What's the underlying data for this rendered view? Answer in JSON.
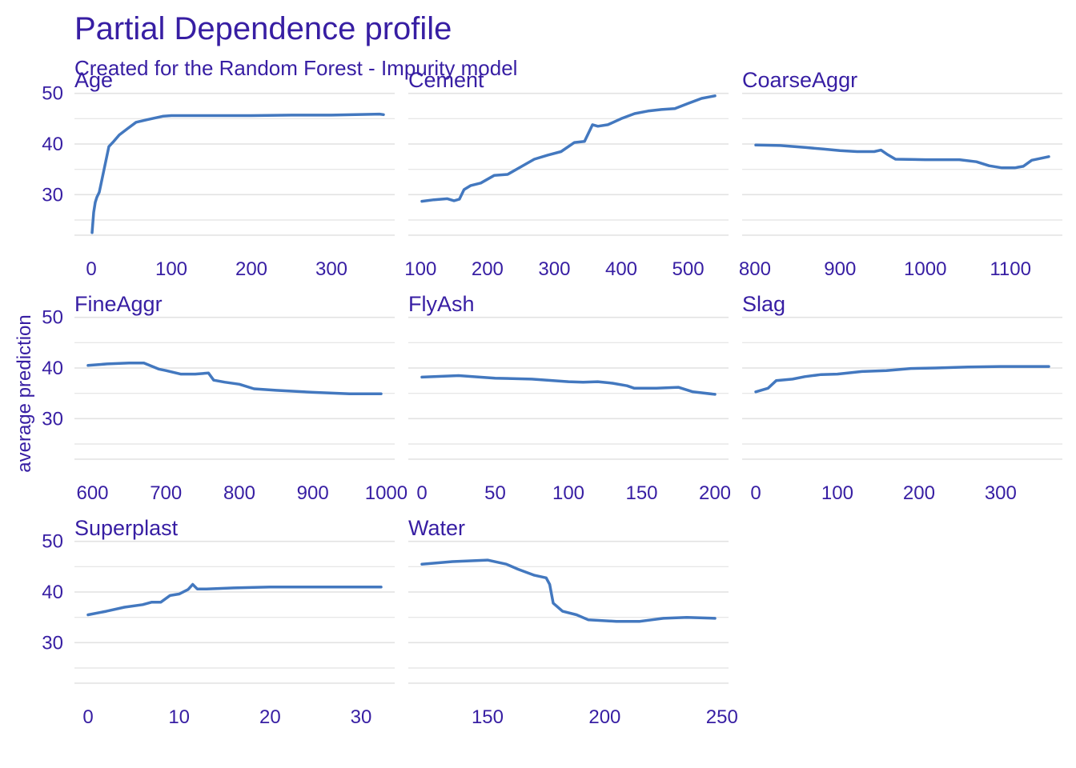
{
  "chart_data": {
    "type": "line",
    "title": "Partial Dependence profile",
    "subtitle": "Created for the Random Forest - Impurity model",
    "ylabel": "average prediction",
    "ylim": [
      22,
      52
    ],
    "y_ticks": [
      30,
      40,
      50
    ],
    "grid": true,
    "colors": {
      "text": "#371ea3",
      "line": "#4378bf",
      "grid": "#e2e2e2"
    },
    "panels": [
      {
        "name": "Age",
        "xlim": [
          -4,
          362
        ],
        "x_ticks": [
          0,
          100,
          200,
          300
        ],
        "x": [
          1,
          3,
          5,
          7,
          10,
          14,
          18,
          22,
          28,
          35,
          45,
          56,
          70,
          90,
          100,
          150,
          200,
          250,
          300,
          360,
          365
        ],
        "y": [
          22.5,
          26.5,
          28.5,
          29.5,
          30.5,
          33.5,
          36.5,
          39.5,
          40.5,
          41.8,
          43,
          44.3,
          44.8,
          45.5,
          45.6,
          45.6,
          45.6,
          45.7,
          45.7,
          45.9,
          45.8
        ]
      },
      {
        "name": "Cement",
        "xlim": [
          102,
          540
        ],
        "x_ticks": [
          100,
          200,
          300,
          400,
          500
        ],
        "x": [
          102,
          120,
          140,
          150,
          158,
          165,
          175,
          190,
          210,
          230,
          250,
          270,
          290,
          310,
          330,
          345,
          357,
          365,
          380,
          400,
          420,
          440,
          460,
          480,
          500,
          520,
          540
        ],
        "y": [
          28.7,
          29,
          29.2,
          28.8,
          29.1,
          31,
          31.8,
          32.3,
          33.8,
          34,
          35.5,
          37,
          37.8,
          38.5,
          40.3,
          40.5,
          43.8,
          43.5,
          43.8,
          45,
          46,
          46.5,
          46.8,
          47,
          48,
          49,
          49.5
        ]
      },
      {
        "name": "CoarseAggr",
        "xlim": [
          801,
          1145
        ],
        "x_ticks": [
          800,
          900,
          1000,
          1100
        ],
        "x": [
          801,
          830,
          860,
          880,
          900,
          920,
          940,
          948,
          955,
          965,
          1000,
          1040,
          1060,
          1075,
          1090,
          1105,
          1115,
          1125,
          1145
        ],
        "y": [
          39.8,
          39.7,
          39.3,
          39,
          38.7,
          38.5,
          38.5,
          38.8,
          38,
          37,
          36.9,
          36.9,
          36.5,
          35.7,
          35.3,
          35.3,
          35.6,
          36.8,
          37.5
        ]
      },
      {
        "name": "FineAggr",
        "xlim": [
          594,
          993
        ],
        "x_ticks": [
          600,
          700,
          800,
          900,
          1000
        ],
        "x": [
          594,
          620,
          650,
          670,
          690,
          700,
          720,
          740,
          758,
          765,
          780,
          800,
          820,
          850,
          900,
          950,
          993
        ],
        "y": [
          40.5,
          40.8,
          41,
          41,
          39.8,
          39.5,
          38.8,
          38.8,
          39,
          37.6,
          37.2,
          36.8,
          35.9,
          35.6,
          35.2,
          34.9,
          34.9
        ]
      },
      {
        "name": "FlyAsh",
        "xlim": [
          0,
          200
        ],
        "x_ticks": [
          0,
          50,
          100,
          150,
          200
        ],
        "x": [
          0,
          25,
          50,
          75,
          100,
          110,
          120,
          130,
          140,
          145,
          150,
          160,
          175,
          185,
          200
        ],
        "y": [
          38.2,
          38.5,
          38,
          37.8,
          37.3,
          37.2,
          37.3,
          37,
          36.5,
          36,
          36,
          36,
          36.2,
          35.3,
          34.8
        ]
      },
      {
        "name": "Slag",
        "xlim": [
          0,
          359
        ],
        "x_ticks": [
          0,
          100,
          200,
          300
        ],
        "x": [
          0,
          15,
          25,
          45,
          60,
          80,
          100,
          130,
          160,
          190,
          220,
          260,
          300,
          359
        ],
        "y": [
          35.3,
          36,
          37.5,
          37.8,
          38.3,
          38.7,
          38.8,
          39.3,
          39.5,
          39.9,
          40,
          40.2,
          40.3,
          40.3
        ]
      },
      {
        "name": "Superplast",
        "xlim": [
          0,
          32.2
        ],
        "x_ticks": [
          0,
          10,
          20,
          30
        ],
        "x": [
          0,
          2,
          4,
          6,
          7,
          8,
          9,
          10,
          11,
          11.5,
          12,
          13,
          16,
          20,
          25,
          32.2
        ],
        "y": [
          35.5,
          36.2,
          37,
          37.5,
          38,
          38,
          39.3,
          39.6,
          40.5,
          41.5,
          40.6,
          40.6,
          40.8,
          41,
          41,
          41
        ]
      },
      {
        "name": "Water",
        "xlim": [
          122,
          247
        ],
        "x_ticks": [
          150,
          200,
          250
        ],
        "x": [
          122,
          135,
          150,
          158,
          163,
          170,
          175,
          176.5,
          178,
          182,
          188,
          193,
          205,
          215,
          225,
          235,
          247
        ],
        "y": [
          45.5,
          46,
          46.3,
          45.5,
          44.5,
          43.3,
          42.8,
          41.5,
          37.8,
          36.2,
          35.5,
          34.5,
          34.2,
          34.2,
          34.8,
          35,
          34.8
        ]
      }
    ]
  }
}
